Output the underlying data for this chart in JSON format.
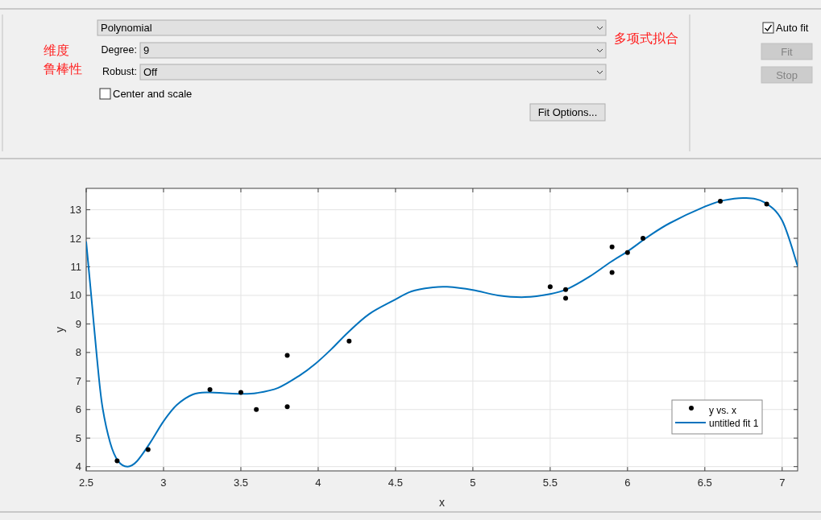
{
  "chart_data": [
    {
      "type": "other",
      "annotations": [
        "Polynomial",
        "Degree:",
        "9",
        "Robust:",
        "Off",
        "Center and scale",
        "Fit Options...",
        "Auto fit",
        "Fit",
        "Stop",
        "维度",
        "鲁棒性",
        "多项式拟合"
      ]
    },
    {
      "type": "scatter",
      "xlabel": "x",
      "ylabel": "y",
      "xlim": [
        2.5,
        7.1
      ],
      "ylim": [
        3.85,
        13.75
      ],
      "xticks": [
        2.5,
        3,
        3.5,
        4,
        4.5,
        5,
        5.5,
        6,
        6.5,
        7
      ],
      "yticks": [
        4,
        5,
        6,
        7,
        8,
        9,
        10,
        11,
        12,
        13
      ],
      "grid": true,
      "legend": "bottom right",
      "series": [
        {
          "name": "y vs. x",
          "type": "scatter",
          "marker": "circle",
          "color": "#000000",
          "x": [
            2.7,
            2.9,
            3.3,
            3.5,
            3.6,
            3.8,
            3.8,
            4.2,
            5.5,
            5.6,
            5.6,
            5.9,
            5.9,
            6.0,
            6.1,
            6.6,
            6.9
          ],
          "values": [
            4.2,
            4.6,
            6.7,
            6.6,
            6.0,
            7.9,
            6.1,
            8.4,
            10.3,
            10.2,
            9.9,
            11.7,
            10.8,
            11.5,
            12.0,
            13.3,
            13.2
          ]
        },
        {
          "name": "untitled fit 1",
          "type": "line",
          "marker": "none",
          "color": "#0072bd",
          "x": [
            2.5,
            2.534,
            2.569,
            2.603,
            2.655,
            2.707,
            2.767,
            2.828,
            2.914,
            3.0,
            3.086,
            3.19,
            3.293,
            3.397,
            3.5,
            3.603,
            3.741,
            3.879,
            3.983,
            4.086,
            4.19,
            4.328,
            4.483,
            4.603,
            4.741,
            4.833,
            5.0,
            5.163,
            5.337,
            5.5,
            5.613,
            5.752,
            5.891,
            6.0,
            6.134,
            6.273,
            6.5,
            6.623,
            6.764,
            6.885,
            7.0,
            7.1
          ],
          "values": [
            11.87,
            9.9,
            7.84,
            6.16,
            4.84,
            4.19,
            4.0,
            4.19,
            4.84,
            5.59,
            6.16,
            6.53,
            6.6,
            6.57,
            6.55,
            6.58,
            6.76,
            7.19,
            7.61,
            8.12,
            8.69,
            9.34,
            9.81,
            10.14,
            10.28,
            10.3,
            10.19,
            10.0,
            9.94,
            10.05,
            10.23,
            10.65,
            11.17,
            11.54,
            12.06,
            12.53,
            13.11,
            13.33,
            13.41,
            13.26,
            12.62,
            11.03
          ]
        }
      ]
    }
  ]
}
